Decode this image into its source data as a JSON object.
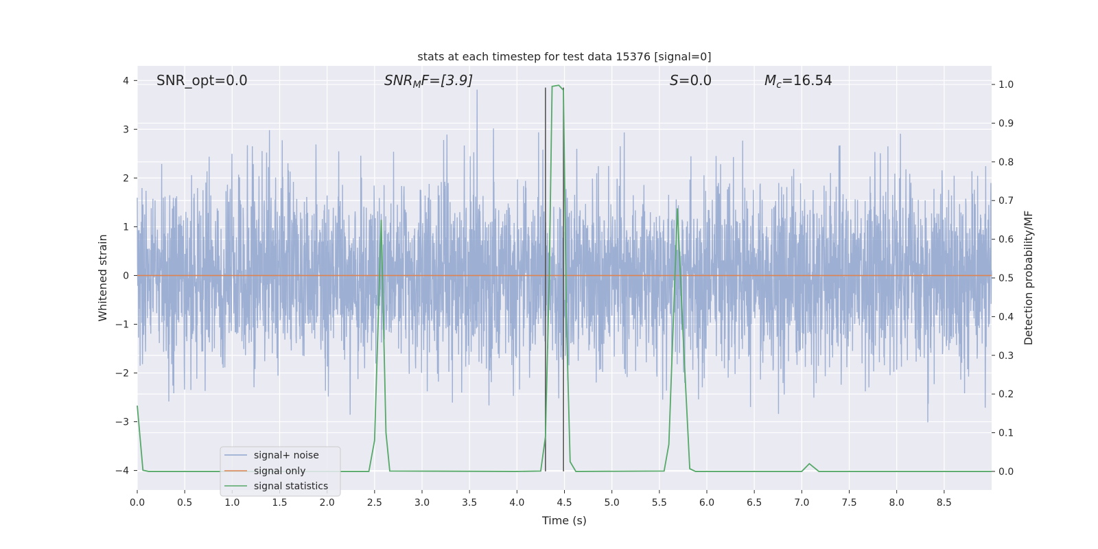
{
  "chart_data": {
    "type": "line",
    "title": "stats at each timestep for test data 15376 [signal=0]",
    "xlabel": "Time (s)",
    "ylabel_left": "Whitened strain",
    "ylabel_right": "Detection probability/MF",
    "xlim": [
      0.0,
      9.0
    ],
    "ylim_left": [
      -4.4,
      4.3
    ],
    "ylim_right": [
      -0.048,
      1.048
    ],
    "x_ticks": [
      "0.0",
      "0.5",
      "1.0",
      "1.5",
      "2.0",
      "2.5",
      "3.0",
      "3.5",
      "4.0",
      "4.5",
      "5.0",
      "5.5",
      "6.0",
      "6.5",
      "7.0",
      "7.5",
      "8.0",
      "8.5"
    ],
    "y_ticks_left": [
      "4",
      "3",
      "2",
      "1",
      "0",
      "−1",
      "−2",
      "−3",
      "−4"
    ],
    "y_ticks_right": [
      "1.0",
      "0.9",
      "0.8",
      "0.7",
      "0.6",
      "0.5",
      "0.4",
      "0.3",
      "0.2",
      "0.1",
      "0.0"
    ],
    "grid": true,
    "legend_placement": "lower-left",
    "annotations": {
      "snr_opt": "SNR_opt=0.0",
      "snr_mf_sym": "SNR",
      "snr_mf_sub": "M",
      "snr_mf_rest": "F=[3.9]",
      "s_sym": "S",
      "s_rest": "=0.0",
      "mc_sym": "M",
      "mc_sub": "c",
      "mc_rest": "=16.54"
    },
    "vlines": [
      4.3,
      4.49
    ],
    "series": [
      {
        "name": "signal+ noise",
        "color": "#8fa4ce",
        "noise_amplitude": 1.6,
        "duration_s": 9.0
      },
      {
        "name": "signal only",
        "color": "#dd8452",
        "values": [
          [
            0.0,
            0.0
          ],
          [
            9.0,
            0.0
          ]
        ]
      },
      {
        "name": "signal statistics",
        "color": "#55a868",
        "values": [
          [
            0.0,
            0.17
          ],
          [
            0.06,
            0.003
          ],
          [
            0.12,
            0.0
          ],
          [
            2.44,
            0.0
          ],
          [
            2.5,
            0.08
          ],
          [
            2.57,
            0.65
          ],
          [
            2.62,
            0.1
          ],
          [
            2.66,
            0.001
          ],
          [
            4.0,
            0.0
          ],
          [
            4.25,
            0.001
          ],
          [
            4.3,
            0.09
          ],
          [
            4.34,
            0.5
          ],
          [
            4.37,
            0.995
          ],
          [
            4.44,
            0.998
          ],
          [
            4.49,
            0.985
          ],
          [
            4.52,
            0.4
          ],
          [
            4.56,
            0.025
          ],
          [
            4.62,
            0.0
          ],
          [
            5.55,
            0.001
          ],
          [
            5.6,
            0.07
          ],
          [
            5.69,
            0.68
          ],
          [
            5.76,
            0.3
          ],
          [
            5.82,
            0.007
          ],
          [
            5.88,
            0.0
          ],
          [
            6.4,
            0.0
          ],
          [
            7.0,
            0.0
          ],
          [
            7.08,
            0.02
          ],
          [
            7.18,
            0.0
          ],
          [
            9.0,
            0.0
          ]
        ]
      }
    ]
  }
}
